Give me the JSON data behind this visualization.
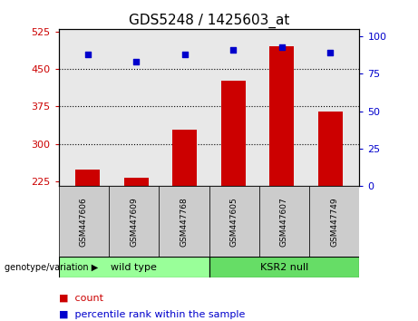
{
  "title": "GDS5248 / 1425603_at",
  "categories": [
    "GSM447606",
    "GSM447609",
    "GSM447768",
    "GSM447605",
    "GSM447607",
    "GSM447749"
  ],
  "bar_values": [
    248,
    232,
    328,
    427,
    495,
    365
  ],
  "percentile_values": [
    88,
    83,
    88,
    91,
    93,
    89
  ],
  "bar_color": "#cc0000",
  "dot_color": "#0000cc",
  "ylim_left": [
    215,
    530
  ],
  "ylim_right": [
    0,
    105
  ],
  "yticks_left": [
    225,
    300,
    375,
    450,
    525
  ],
  "yticks_right": [
    0,
    25,
    50,
    75,
    100
  ],
  "grid_values": [
    300,
    375,
    450
  ],
  "groups": [
    {
      "label": "wild type",
      "indices": [
        0,
        1,
        2
      ],
      "color": "#99ff99"
    },
    {
      "label": "KSR2 null",
      "indices": [
        3,
        4,
        5
      ],
      "color": "#66dd66"
    }
  ],
  "group_label_prefix": "genotype/variation",
  "legend_count_label": "count",
  "legend_pct_label": "percentile rank within the sample",
  "bar_width": 0.5,
  "plot_bg_color": "#e8e8e8",
  "tick_label_color_left": "#cc0000",
  "tick_label_color_right": "#0000cc",
  "axis_baseline": 215
}
